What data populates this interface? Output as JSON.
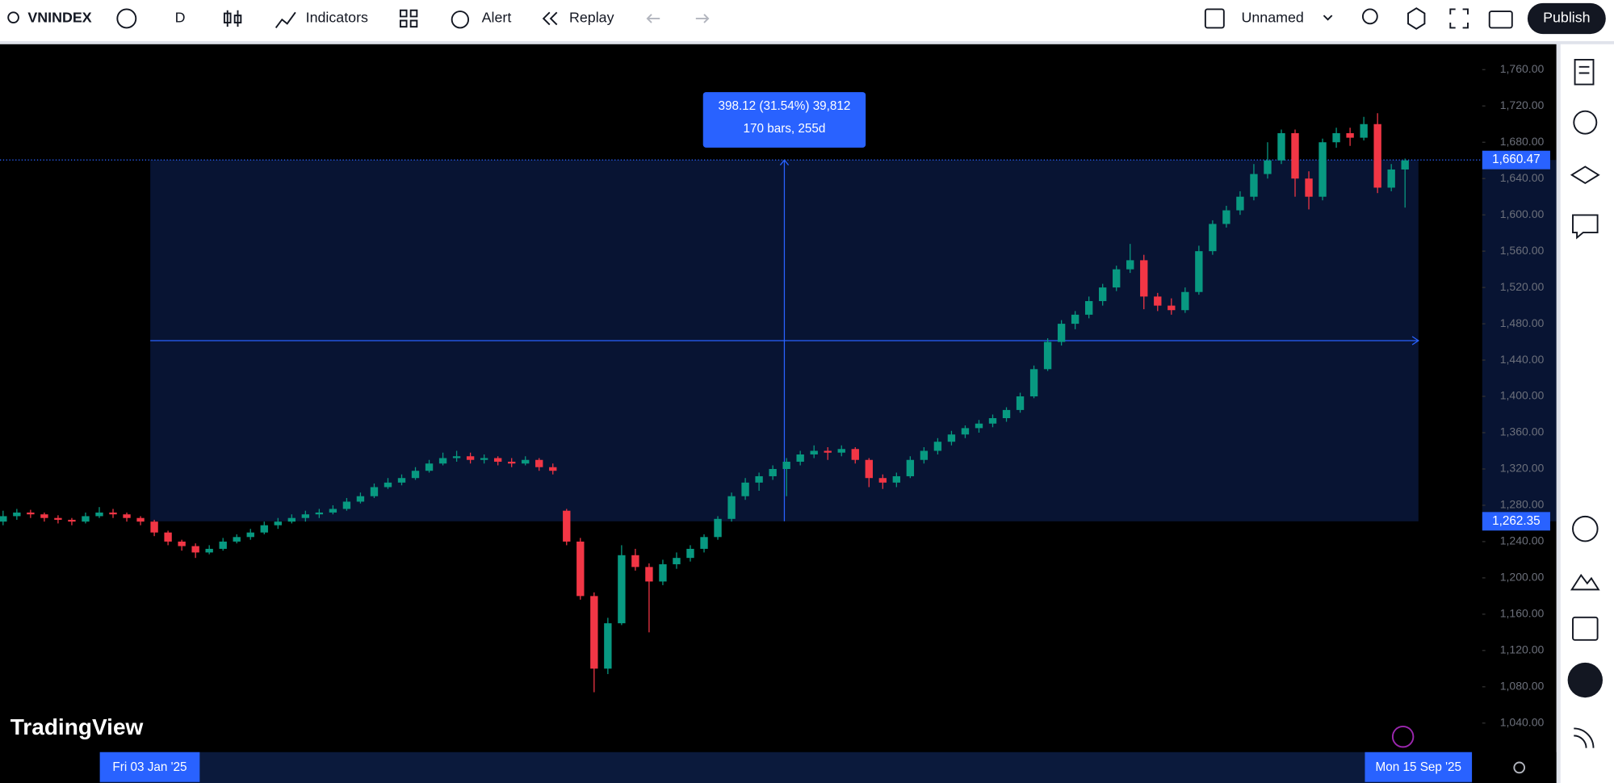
{
  "toolbar": {
    "symbol": "VNINDEX",
    "interval": "D",
    "indicators": "Indicators",
    "alert": "Alert",
    "replay": "Replay",
    "layout_name": "Unnamed",
    "publish": "Publish"
  },
  "chart_data": {
    "type": "candlestick",
    "ylim": [
      1008,
      1788
    ],
    "yticks": [
      {
        "value": 1040,
        "label": "1,040.00"
      },
      {
        "value": 1080,
        "label": "1,080.00"
      },
      {
        "value": 1120,
        "label": "1,120.00"
      },
      {
        "value": 1160,
        "label": "1,160.00"
      },
      {
        "value": 1200,
        "label": "1,200.00"
      },
      {
        "value": 1240,
        "label": "1,240.00"
      },
      {
        "value": 1280,
        "label": "1,280.00"
      },
      {
        "value": 1320,
        "label": "1,320.00"
      },
      {
        "value": 1360,
        "label": "1,360.00"
      },
      {
        "value": 1400,
        "label": "1,400.00"
      },
      {
        "value": 1440,
        "label": "1,440.00"
      },
      {
        "value": 1480,
        "label": "1,480.00"
      },
      {
        "value": 1520,
        "label": "1,520.00"
      },
      {
        "value": 1560,
        "label": "1,560.00"
      },
      {
        "value": 1600,
        "label": "1,600.00"
      },
      {
        "value": 1640,
        "label": "1,640.00"
      },
      {
        "value": 1680,
        "label": "1,680.00"
      },
      {
        "value": 1720,
        "label": "1,720.00"
      },
      {
        "value": 1760,
        "label": "1,760.00"
      }
    ],
    "up_color": "#089981",
    "down_color": "#f23645",
    "candles": [
      [
        1262,
        1274,
        1258,
        1268
      ],
      [
        1268,
        1276,
        1264,
        1272
      ],
      [
        1272,
        1275,
        1266,
        1270
      ],
      [
        1270,
        1272,
        1262,
        1266
      ],
      [
        1266,
        1269,
        1260,
        1264
      ],
      [
        1264,
        1266,
        1258,
        1262
      ],
      [
        1262,
        1272,
        1260,
        1268
      ],
      [
        1268,
        1278,
        1266,
        1272
      ],
      [
        1272,
        1276,
        1266,
        1270
      ],
      [
        1270,
        1272,
        1262,
        1266
      ],
      [
        1266,
        1268,
        1258,
        1262
      ],
      [
        1262,
        1264,
        1246,
        1250
      ],
      [
        1250,
        1252,
        1236,
        1240
      ],
      [
        1240,
        1242,
        1230,
        1235
      ],
      [
        1235,
        1238,
        1222,
        1228
      ],
      [
        1228,
        1236,
        1226,
        1232
      ],
      [
        1232,
        1244,
        1230,
        1240
      ],
      [
        1240,
        1248,
        1238,
        1245
      ],
      [
        1245,
        1254,
        1242,
        1250
      ],
      [
        1250,
        1262,
        1248,
        1258
      ],
      [
        1258,
        1266,
        1254,
        1262
      ],
      [
        1262,
        1270,
        1260,
        1266
      ],
      [
        1266,
        1274,
        1262,
        1270
      ],
      [
        1270,
        1276,
        1266,
        1272
      ],
      [
        1272,
        1280,
        1270,
        1276
      ],
      [
        1276,
        1288,
        1274,
        1284
      ],
      [
        1284,
        1294,
        1282,
        1290
      ],
      [
        1290,
        1304,
        1288,
        1300
      ],
      [
        1300,
        1310,
        1298,
        1305
      ],
      [
        1305,
        1314,
        1302,
        1310
      ],
      [
        1310,
        1322,
        1308,
        1318
      ],
      [
        1318,
        1330,
        1316,
        1326
      ],
      [
        1326,
        1338,
        1324,
        1332
      ],
      [
        1332,
        1340,
        1328,
        1334
      ],
      [
        1334,
        1338,
        1326,
        1330
      ],
      [
        1330,
        1336,
        1326,
        1332
      ],
      [
        1332,
        1334,
        1324,
        1328
      ],
      [
        1328,
        1332,
        1322,
        1326
      ],
      [
        1326,
        1334,
        1324,
        1330
      ],
      [
        1330,
        1332,
        1318,
        1322
      ],
      [
        1322,
        1326,
        1314,
        1318
      ],
      [
        1274,
        1276,
        1236,
        1240
      ],
      [
        1240,
        1244,
        1176,
        1180
      ],
      [
        1180,
        1184,
        1074,
        1100
      ],
      [
        1100,
        1156,
        1094,
        1150
      ],
      [
        1150,
        1236,
        1148,
        1225
      ],
      [
        1225,
        1232,
        1208,
        1212
      ],
      [
        1212,
        1216,
        1140,
        1196
      ],
      [
        1196,
        1220,
        1192,
        1215
      ],
      [
        1215,
        1228,
        1210,
        1222
      ],
      [
        1222,
        1236,
        1218,
        1232
      ],
      [
        1232,
        1248,
        1228,
        1245
      ],
      [
        1245,
        1268,
        1242,
        1265
      ],
      [
        1265,
        1294,
        1262,
        1290
      ],
      [
        1290,
        1310,
        1286,
        1305
      ],
      [
        1305,
        1316,
        1296,
        1312
      ],
      [
        1312,
        1324,
        1308,
        1320
      ],
      [
        1320,
        1332,
        1290,
        1328
      ],
      [
        1328,
        1340,
        1324,
        1336
      ],
      [
        1336,
        1346,
        1332,
        1340
      ],
      [
        1340,
        1344,
        1330,
        1338
      ],
      [
        1338,
        1346,
        1334,
        1342
      ],
      [
        1342,
        1344,
        1326,
        1330
      ],
      [
        1330,
        1332,
        1300,
        1310
      ],
      [
        1310,
        1314,
        1298,
        1305
      ],
      [
        1305,
        1316,
        1300,
        1312
      ],
      [
        1312,
        1334,
        1310,
        1330
      ],
      [
        1330,
        1344,
        1326,
        1340
      ],
      [
        1340,
        1354,
        1336,
        1350
      ],
      [
        1350,
        1362,
        1346,
        1358
      ],
      [
        1358,
        1368,
        1354,
        1365
      ],
      [
        1365,
        1374,
        1360,
        1370
      ],
      [
        1370,
        1380,
        1366,
        1376
      ],
      [
        1376,
        1388,
        1372,
        1385
      ],
      [
        1385,
        1404,
        1382,
        1400
      ],
      [
        1400,
        1434,
        1398,
        1430
      ],
      [
        1430,
        1464,
        1428,
        1460
      ],
      [
        1460,
        1484,
        1456,
        1480
      ],
      [
        1480,
        1494,
        1474,
        1490
      ],
      [
        1490,
        1510,
        1486,
        1505
      ],
      [
        1505,
        1524,
        1500,
        1520
      ],
      [
        1520,
        1544,
        1516,
        1540
      ],
      [
        1540,
        1568,
        1536,
        1550
      ],
      [
        1550,
        1556,
        1496,
        1510
      ],
      [
        1510,
        1514,
        1494,
        1500
      ],
      [
        1500,
        1508,
        1490,
        1495
      ],
      [
        1495,
        1520,
        1492,
        1515
      ],
      [
        1515,
        1566,
        1512,
        1560
      ],
      [
        1560,
        1594,
        1556,
        1590
      ],
      [
        1590,
        1610,
        1586,
        1605
      ],
      [
        1605,
        1626,
        1600,
        1620
      ],
      [
        1620,
        1656,
        1616,
        1645
      ],
      [
        1645,
        1680,
        1640,
        1660
      ],
      [
        1660,
        1694,
        1656,
        1690
      ],
      [
        1690,
        1694,
        1620,
        1640
      ],
      [
        1640,
        1648,
        1606,
        1620
      ],
      [
        1620,
        1684,
        1616,
        1680
      ],
      [
        1680,
        1696,
        1674,
        1690
      ],
      [
        1690,
        1696,
        1676,
        1685
      ],
      [
        1685,
        1708,
        1682,
        1700
      ],
      [
        1700,
        1712,
        1624,
        1630
      ],
      [
        1630,
        1656,
        1626,
        1650
      ],
      [
        1650,
        1662,
        1608,
        1660
      ]
    ],
    "measure": {
      "high": {
        "value": 1660.47,
        "label": "1,660.47"
      },
      "low": {
        "value": 1262.35,
        "label": "1,262.35"
      },
      "line1": "398.12 (31.54%) 39,812",
      "line2": "170 bars, 255d",
      "start_label": "Fri 03 Jan '25",
      "end_label": "Mon 15 Sep '25"
    }
  },
  "watermark": "TradingView"
}
